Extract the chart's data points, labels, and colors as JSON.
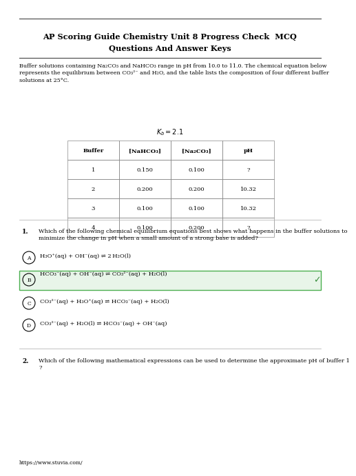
{
  "title_line1": "AP Scoring Guide Chemistry Unit 8 Progress Check  MCQ",
  "title_line2": "Questions And Answer Keys",
  "bg_color": "#ffffff",
  "intro_text": "Buffer solutions containing Na₂CO₃ and NaHCO₃ range in pH from 10.0 to 11.0. The chemical equation below\nrepresents the equilibrium between CO₃²⁻ and H₂O, and the table lists the composition of four different buffer\nsolutions at 25°C.",
  "ka_text": "$K_b = 2.1$",
  "table_headers": [
    "Buffer",
    "[NaHCO₃]",
    "[Na₂CO₃]",
    "pH"
  ],
  "table_data": [
    [
      "1",
      "0.150",
      "0.100",
      "?"
    ],
    [
      "2",
      "0.200",
      "0.200",
      "10.32"
    ],
    [
      "3",
      "0.100",
      "0.100",
      "10.32"
    ],
    [
      "4",
      "0.100",
      "0.200",
      "?"
    ]
  ],
  "q1_num": "1.",
  "q1_text": "Which of the following chemical equilibrium equations best shows what happens in the buffer solutions to\nminimize the change in pH when a small amount of a strong base is added?",
  "answer_A": "H₃O⁺(aq) + OH⁻(aq) ⇌ 2 H₂O(l)",
  "answer_B": "HCO₃⁻(aq) + OH⁻(aq) ⇌ CO₃²⁻(aq) + H₂O(l)",
  "answer_C": "CO₃²⁻(aq) + H₃O⁺(aq) ⇌ HCO₃⁻(aq) + H₂O(l)",
  "answer_D": "CO₃²⁻(aq) + H₂O(l) ⇌ HCO₃⁻(aq) + OH⁻(aq)",
  "q2_num": "2.",
  "q2_text": "Which of the following mathematical expressions can be used to determine the approximate pH of buffer 1\n?",
  "footer": "https://www.stuvia.com/",
  "top_line_color": "#444444",
  "section_line_color": "#aaaaaa",
  "green_face": "#e8f5e9",
  "green_edge": "#4caf50",
  "check_color": "#388e3c"
}
